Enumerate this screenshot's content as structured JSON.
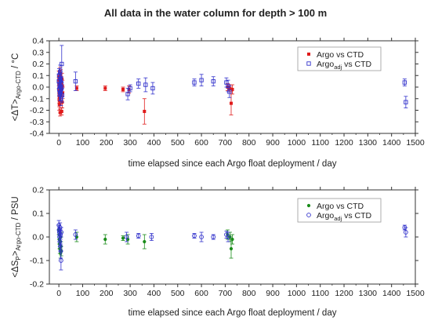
{
  "figure_title": "All data in the water column for depth > 100 m",
  "colors": {
    "frame": "#333333",
    "red_series": "#e01b1b",
    "blue_series": "#3333cc",
    "green_series": "#1a8c1a"
  },
  "chart_data": [
    {
      "type": "scatter",
      "title": "All data in the water column for depth > 100 m",
      "xlabel": "time elapsed since each Argo float deployment / day",
      "ylabel_main": "<ΔT>",
      "ylabel_sub": "Argo-CTD",
      "ylabel_unit": " / °C",
      "xlim": [
        -40,
        1500
      ],
      "ylim": [
        -0.4,
        0.4
      ],
      "x_ticks": [
        0,
        100,
        200,
        300,
        400,
        500,
        600,
        700,
        800,
        900,
        1000,
        1100,
        1200,
        1300,
        1400,
        1500
      ],
      "y_ticks": [
        -0.4,
        -0.3,
        -0.2,
        -0.1,
        0.0,
        0.1,
        0.2,
        0.3,
        0.4
      ],
      "y_tick_labels": [
        "-0.4",
        "-0.3",
        "-0.2",
        "-0.1",
        "0.0",
        "0.1",
        "0.2",
        "0.3",
        "0.4"
      ],
      "grid": false,
      "legend_position": "top-right",
      "series": [
        {
          "name": "Argo vs CTD",
          "name_main": "Argo vs CTD",
          "marker": "filled-square",
          "color": "#e01b1b",
          "points": [
            {
              "x": 0,
              "y": 0.09,
              "err": 0.05
            },
            {
              "x": 0,
              "y": 0.06,
              "err": 0.05
            },
            {
              "x": 0,
              "y": 0.03,
              "err": 0.05
            },
            {
              "x": 1,
              "y": 0.0,
              "err": 0.05
            },
            {
              "x": 1,
              "y": -0.03,
              "err": 0.05
            },
            {
              "x": 1,
              "y": -0.06,
              "err": 0.05
            },
            {
              "x": 2,
              "y": -0.09,
              "err": 0.05
            },
            {
              "x": 2,
              "y": -0.12,
              "err": 0.05
            },
            {
              "x": 2,
              "y": -0.15,
              "err": 0.05
            },
            {
              "x": 3,
              "y": 0.08,
              "err": 0.05
            },
            {
              "x": 3,
              "y": 0.02,
              "err": 0.05
            },
            {
              "x": 4,
              "y": -0.04,
              "err": 0.05
            },
            {
              "x": 4,
              "y": -0.1,
              "err": 0.05
            },
            {
              "x": 5,
              "y": 0.12,
              "err": 0.05
            },
            {
              "x": 5,
              "y": -0.22,
              "err": 0.03
            },
            {
              "x": 6,
              "y": 0.05,
              "err": 0.05
            },
            {
              "x": 7,
              "y": -0.02,
              "err": 0.05
            },
            {
              "x": 8,
              "y": 0.1,
              "err": 0.05
            },
            {
              "x": 9,
              "y": -0.07,
              "err": 0.05
            },
            {
              "x": 10,
              "y": 0.04,
              "err": 0.05
            },
            {
              "x": 11,
              "y": -0.01,
              "err": 0.05
            },
            {
              "x": 12,
              "y": -0.21,
              "err": 0.03
            },
            {
              "x": 13,
              "y": 0.07,
              "err": 0.05
            },
            {
              "x": 14,
              "y": -0.13,
              "err": 0.05
            },
            {
              "x": 15,
              "y": 0.01,
              "err": 0.05
            },
            {
              "x": 16,
              "y": -0.05,
              "err": 0.05
            },
            {
              "x": 75,
              "y": -0.01,
              "err": 0.02
            },
            {
              "x": 195,
              "y": -0.01,
              "err": 0.02
            },
            {
              "x": 270,
              "y": -0.02,
              "err": 0.02
            },
            {
              "x": 295,
              "y": -0.02,
              "err": 0.03
            },
            {
              "x": 360,
              "y": -0.21,
              "err": 0.11
            },
            {
              "x": 710,
              "y": 0.0,
              "err": 0.03
            },
            {
              "x": 720,
              "y": -0.01,
              "err": 0.03
            },
            {
              "x": 725,
              "y": -0.14,
              "err": 0.1
            },
            {
              "x": 730,
              "y": -0.02,
              "err": 0.04
            }
          ]
        },
        {
          "name": "Argo_adj vs CTD",
          "name_main": "Argo",
          "name_sub": "adj",
          "name_rest": " vs CTD",
          "marker": "open-square",
          "color": "#3333cc",
          "points": [
            {
              "x": 0,
              "y": 0.05,
              "err": 0.06
            },
            {
              "x": 1,
              "y": 0.1,
              "err": 0.06
            },
            {
              "x": 2,
              "y": -0.02,
              "err": 0.06
            },
            {
              "x": 3,
              "y": 0.02,
              "err": 0.06
            },
            {
              "x": 4,
              "y": -0.06,
              "err": 0.06
            },
            {
              "x": 5,
              "y": 0.13,
              "err": 0.06
            },
            {
              "x": 6,
              "y": 0.0,
              "err": 0.06
            },
            {
              "x": 7,
              "y": -0.04,
              "err": 0.06
            },
            {
              "x": 8,
              "y": 0.07,
              "err": 0.06
            },
            {
              "x": 9,
              "y": -0.1,
              "err": 0.06
            },
            {
              "x": 10,
              "y": 0.03,
              "err": 0.06
            },
            {
              "x": 11,
              "y": -0.01,
              "err": 0.06
            },
            {
              "x": 12,
              "y": 0.2,
              "err": 0.16
            },
            {
              "x": 14,
              "y": -0.07,
              "err": 0.06
            },
            {
              "x": 70,
              "y": 0.05,
              "err": 0.08
            },
            {
              "x": 290,
              "y": -0.06,
              "err": 0.05
            },
            {
              "x": 300,
              "y": -0.01,
              "err": 0.03
            },
            {
              "x": 335,
              "y": 0.03,
              "err": 0.04
            },
            {
              "x": 365,
              "y": 0.02,
              "err": 0.06
            },
            {
              "x": 395,
              "y": -0.01,
              "err": 0.05
            },
            {
              "x": 570,
              "y": 0.04,
              "err": 0.03
            },
            {
              "x": 600,
              "y": 0.06,
              "err": 0.05
            },
            {
              "x": 650,
              "y": 0.05,
              "err": 0.04
            },
            {
              "x": 705,
              "y": 0.04,
              "err": 0.04
            },
            {
              "x": 712,
              "y": 0.01,
              "err": 0.05
            },
            {
              "x": 718,
              "y": -0.04,
              "err": 0.05
            },
            {
              "x": 1455,
              "y": 0.04,
              "err": 0.03
            },
            {
              "x": 1460,
              "y": -0.13,
              "err": 0.05
            }
          ]
        }
      ]
    },
    {
      "type": "scatter",
      "title": "",
      "xlabel": "time elapsed since each Argo float deployment / day",
      "ylabel_main": "<ΔS",
      "ylabel_p": "P",
      "ylabel_close": ">",
      "ylabel_sub": "Argo-CTD",
      "ylabel_unit": " / PSU",
      "xlim": [
        -40,
        1500
      ],
      "ylim": [
        -0.2,
        0.2
      ],
      "x_ticks": [
        0,
        100,
        200,
        300,
        400,
        500,
        600,
        700,
        800,
        900,
        1000,
        1100,
        1200,
        1300,
        1400,
        1500
      ],
      "y_ticks": [
        -0.2,
        -0.1,
        0.0,
        0.1,
        0.2
      ],
      "y_tick_labels": [
        "-0.2",
        "-0.1",
        "0.0",
        "0.1",
        "0.2"
      ],
      "grid": false,
      "legend_position": "top-right",
      "series": [
        {
          "name": "Argo vs CTD",
          "name_main": "Argo vs CTD",
          "marker": "filled-circle",
          "color": "#1a8c1a",
          "points": [
            {
              "x": 0,
              "y": 0.03,
              "err": 0.02
            },
            {
              "x": 1,
              "y": 0.01,
              "err": 0.02
            },
            {
              "x": 2,
              "y": -0.01,
              "err": 0.02
            },
            {
              "x": 3,
              "y": -0.03,
              "err": 0.02
            },
            {
              "x": 4,
              "y": -0.05,
              "err": 0.02
            },
            {
              "x": 5,
              "y": 0.02,
              "err": 0.02
            },
            {
              "x": 6,
              "y": -0.02,
              "err": 0.02
            },
            {
              "x": 7,
              "y": -0.07,
              "err": 0.02
            },
            {
              "x": 8,
              "y": 0.0,
              "err": 0.02
            },
            {
              "x": 9,
              "y": -0.04,
              "err": 0.02
            },
            {
              "x": 10,
              "y": -0.06,
              "err": 0.02
            },
            {
              "x": 75,
              "y": 0.0,
              "err": 0.02
            },
            {
              "x": 195,
              "y": -0.01,
              "err": 0.02
            },
            {
              "x": 270,
              "y": -0.005,
              "err": 0.01
            },
            {
              "x": 290,
              "y": -0.01,
              "err": 0.02
            },
            {
              "x": 360,
              "y": -0.02,
              "err": 0.03
            },
            {
              "x": 710,
              "y": 0.01,
              "err": 0.02
            },
            {
              "x": 720,
              "y": 0.0,
              "err": 0.02
            },
            {
              "x": 725,
              "y": -0.05,
              "err": 0.04
            },
            {
              "x": 730,
              "y": -0.01,
              "err": 0.02
            }
          ]
        },
        {
          "name": "Argo_adj vs CTD",
          "name_main": "Argo",
          "name_sub": "adj",
          "name_rest": " vs CTD",
          "marker": "open-circle",
          "color": "#3333cc",
          "points": [
            {
              "x": 0,
              "y": 0.05,
              "err": 0.02
            },
            {
              "x": 1,
              "y": 0.03,
              "err": 0.02
            },
            {
              "x": 2,
              "y": 0.02,
              "err": 0.02
            },
            {
              "x": 3,
              "y": 0.0,
              "err": 0.02
            },
            {
              "x": 4,
              "y": -0.02,
              "err": 0.02
            },
            {
              "x": 5,
              "y": 0.04,
              "err": 0.02
            },
            {
              "x": 6,
              "y": -0.04,
              "err": 0.02
            },
            {
              "x": 7,
              "y": 0.01,
              "err": 0.02
            },
            {
              "x": 8,
              "y": -0.06,
              "err": 0.03
            },
            {
              "x": 9,
              "y": -0.1,
              "err": 0.04
            },
            {
              "x": 10,
              "y": 0.02,
              "err": 0.02
            },
            {
              "x": 70,
              "y": 0.01,
              "err": 0.02
            },
            {
              "x": 285,
              "y": 0.0,
              "err": 0.02
            },
            {
              "x": 335,
              "y": 0.005,
              "err": 0.01
            },
            {
              "x": 390,
              "y": 0.0,
              "err": 0.015
            },
            {
              "x": 570,
              "y": 0.005,
              "err": 0.01
            },
            {
              "x": 600,
              "y": 0.0,
              "err": 0.02
            },
            {
              "x": 650,
              "y": 0.0,
              "err": 0.01
            },
            {
              "x": 705,
              "y": 0.01,
              "err": 0.015
            },
            {
              "x": 712,
              "y": 0.0,
              "err": 0.02
            },
            {
              "x": 1455,
              "y": 0.04,
              "err": 0.01
            },
            {
              "x": 1460,
              "y": 0.02,
              "err": 0.02
            }
          ]
        }
      ]
    }
  ]
}
